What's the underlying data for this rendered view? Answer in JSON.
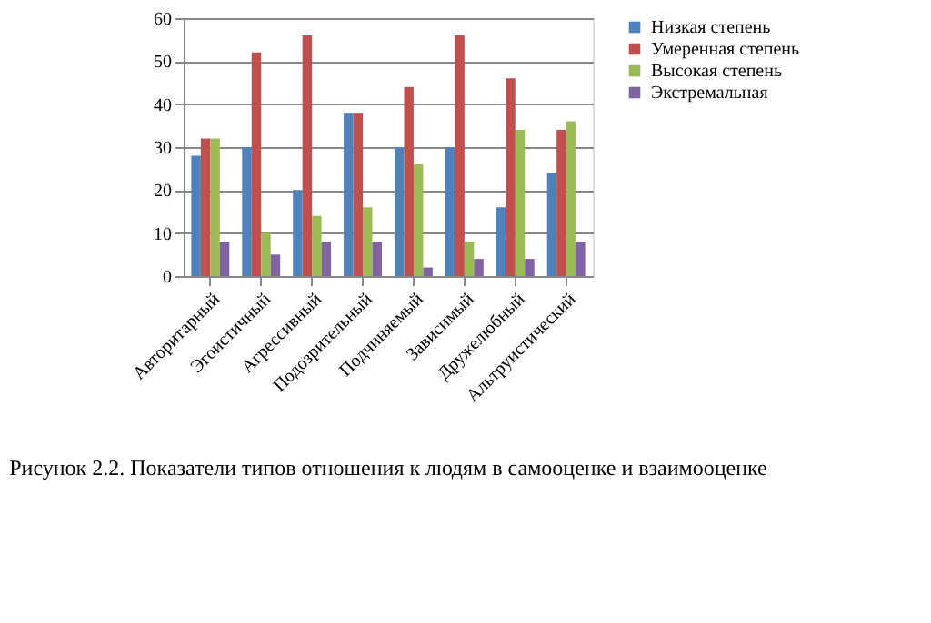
{
  "chart_data": {
    "type": "bar",
    "categories": [
      "Авторитарный",
      "Эгоистичный",
      "Агрессивный",
      "Подозрительный",
      "Подчиняемый",
      "Зависимый",
      "Дружелюбный",
      "Альтруистический"
    ],
    "series": [
      {
        "name": "Низкая степень",
        "color": "#4f81bd",
        "values": [
          28,
          30,
          20,
          38,
          30,
          30,
          16,
          24
        ]
      },
      {
        "name": "Умеренная степень",
        "color": "#c0504d",
        "values": [
          32,
          52,
          56,
          38,
          44,
          56,
          46,
          34
        ]
      },
      {
        "name": "Высокая степень",
        "color": "#9bbb59",
        "values": [
          32,
          10,
          14,
          16,
          26,
          8,
          34,
          36
        ]
      },
      {
        "name": "Экстремальная",
        "color": "#8064a2",
        "values": [
          8,
          5,
          8,
          8,
          2,
          4,
          4,
          8
        ]
      }
    ],
    "ylim": [
      0,
      60
    ],
    "yticks": [
      0,
      10,
      20,
      30,
      40,
      50,
      60
    ],
    "grid": "y",
    "legend": "right",
    "annotations": [
      "Рисунок 2.2. Показатели типов отношения к людям в самооценке и взаимооценке"
    ]
  }
}
